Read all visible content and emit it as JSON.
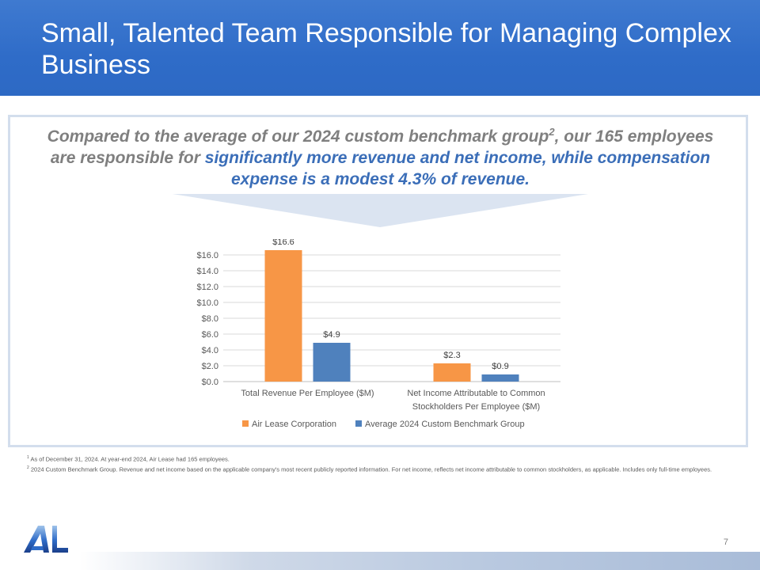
{
  "header": {
    "title": "Small, Talented Team Responsible for Managing Complex Business"
  },
  "subtitle": {
    "part1": "Compared to the average of our 2024 custom benchmark group",
    "sup": "2",
    "part2": ", our 165 employees are responsible for ",
    "highlight": "significantly more revenue and net income, while compensation expense is a modest 4.3% of revenue."
  },
  "chart_data": {
    "type": "bar",
    "categories": [
      [
        "Total Revenue Per Employee ($M)"
      ],
      [
        "Net Income Attributable to Common",
        "Stockholders Per Employee ($M)"
      ]
    ],
    "series": [
      {
        "name": "Air Lease Corporation",
        "values": [
          16.6,
          2.3
        ],
        "labels": [
          "$16.6",
          "$2.3"
        ],
        "color": "#f79646"
      },
      {
        "name": "Average 2024 Custom Benchmark Group",
        "values": [
          4.9,
          0.9
        ],
        "labels": [
          "$4.9",
          "$0.9"
        ],
        "color": "#4f81bd"
      }
    ],
    "yticks": [
      "$0.0",
      "$2.0",
      "$4.0",
      "$6.0",
      "$8.0",
      "$10.0",
      "$12.0",
      "$14.0",
      "$16.0"
    ],
    "ylim": [
      0,
      16
    ],
    "grid": true,
    "legend_position": "bottom"
  },
  "footnotes": {
    "note1_mark": "1",
    "note1": "As of December 31, 2024.  At year-end 2024, Air Lease had 165 employees.",
    "note2_mark": "2",
    "note2": "2024 Custom Benchmark Group.  Revenue and net income based on the applicable company's most recent publicly reported information. For net income, reflects net income attributable to common stockholders, as applicable.  Includes only full-time employees."
  },
  "logo_text": "AL",
  "page_number": "7",
  "colors": {
    "header_blue": "#2f6cc8",
    "accent_blue": "#3b6eb8",
    "orange": "#f79646",
    "steel_blue": "#4f81bd"
  }
}
